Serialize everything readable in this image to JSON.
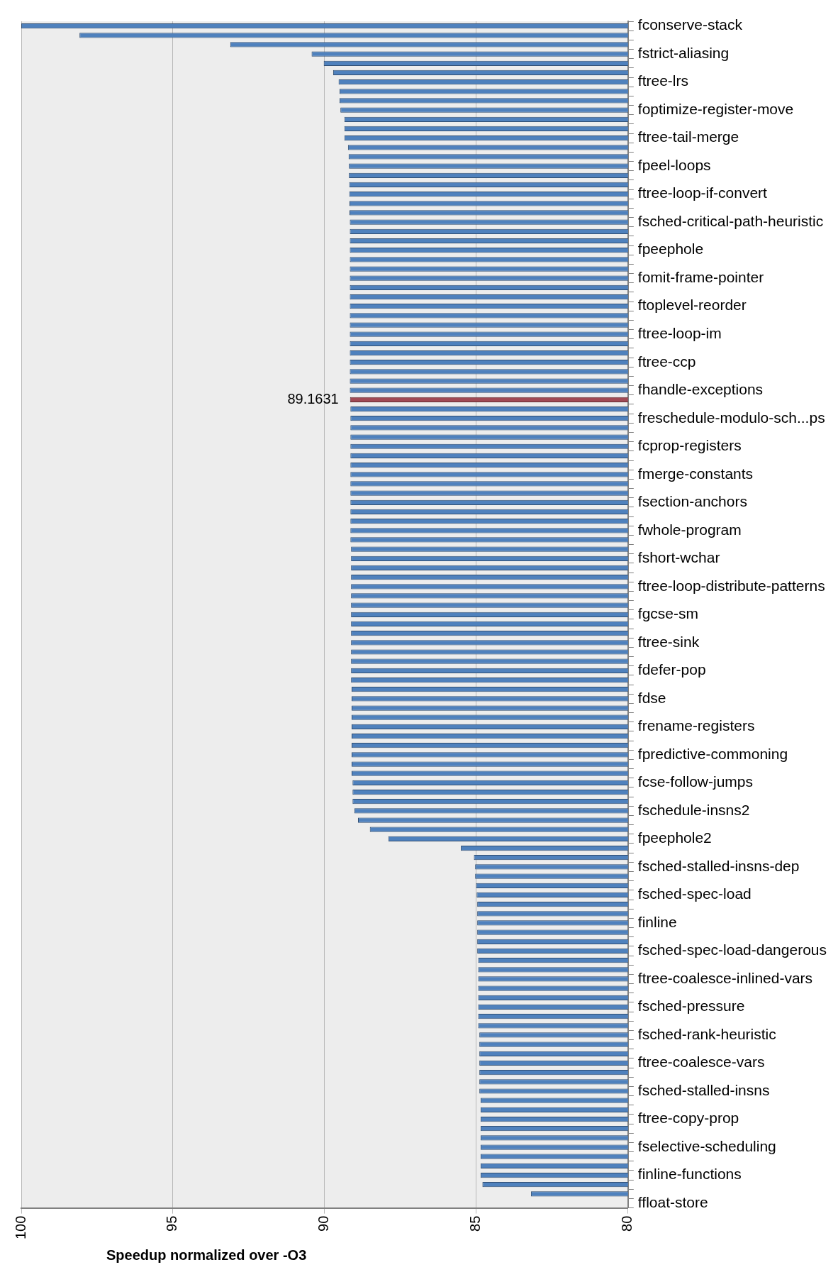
{
  "chart_data": {
    "type": "bar",
    "orientation": "horizontal",
    "xlabel": "Speedup normalized over -O3",
    "categories": [
      "fconserve-stack",
      null,
      null,
      "fstrict-aliasing",
      null,
      null,
      "ftree-lrs",
      null,
      null,
      "foptimize-register-move",
      null,
      null,
      "ftree-tail-merge",
      null,
      null,
      "fpeel-loops",
      null,
      null,
      "ftree-loop-if-convert",
      null,
      null,
      "fsched-critical-path-heuristic",
      null,
      null,
      "fpeephole",
      null,
      null,
      "fomit-frame-pointer",
      null,
      null,
      "ftoplevel-reorder",
      null,
      null,
      "ftree-loop-im",
      null,
      null,
      "ftree-ccp",
      null,
      null,
      "fhandle-exceptions",
      null,
      null,
      "freschedule-modulo-sch...ps",
      null,
      null,
      "fcprop-registers",
      null,
      null,
      "fmerge-constants",
      null,
      null,
      "fsection-anchors",
      null,
      null,
      "fwhole-program",
      null,
      null,
      "fshort-wchar",
      null,
      null,
      "ftree-loop-distribute-patterns",
      null,
      null,
      "fgcse-sm",
      null,
      null,
      "ftree-sink",
      null,
      null,
      "fdefer-pop",
      null,
      null,
      "fdse",
      null,
      null,
      "frename-registers",
      null,
      null,
      "fpredictive-commoning",
      null,
      null,
      "fcse-follow-jumps",
      null,
      null,
      "fschedule-insns2",
      null,
      null,
      "fpeephole2",
      null,
      null,
      "fsched-stalled-insns-dep",
      null,
      null,
      "fsched-spec-load",
      null,
      null,
      "finline",
      null,
      null,
      "fsched-spec-load-dangerous",
      null,
      null,
      "ftree-coalesce-inlined-vars",
      null,
      null,
      "fsched-pressure",
      null,
      null,
      "fsched-rank-heuristic",
      null,
      null,
      "ftree-coalesce-vars",
      null,
      null,
      "fsched-stalled-insns",
      null,
      null,
      "ftree-copy-prop",
      null,
      null,
      "fselective-scheduling",
      null,
      null,
      "finline-functions",
      null,
      null,
      "ffloat-store"
    ],
    "values": [
      100,
      98.08,
      93.11,
      90.43,
      90.03,
      89.72,
      89.54,
      89.51,
      89.51,
      89.48,
      89.35,
      89.35,
      89.35,
      89.23,
      89.21,
      89.2,
      89.2,
      89.19,
      89.19,
      89.18,
      89.18,
      89.17,
      89.17,
      89.17,
      89.17,
      89.17,
      89.17,
      89.17,
      89.17,
      89.17,
      89.17,
      89.17,
      89.17,
      89.17,
      89.17,
      89.17,
      89.17,
      89.17,
      89.17,
      89.17,
      89.1631,
      89.15,
      89.15,
      89.15,
      89.15,
      89.15,
      89.15,
      89.15,
      89.15,
      89.15,
      89.15,
      89.15,
      89.15,
      89.15,
      89.15,
      89.15,
      89.13,
      89.13,
      89.13,
      89.13,
      89.13,
      89.13,
      89.13,
      89.13,
      89.13,
      89.13,
      89.13,
      89.13,
      89.13,
      89.13,
      89.13,
      89.11,
      89.11,
      89.11,
      89.11,
      89.11,
      89.11,
      89.11,
      89.11,
      89.11,
      89.11,
      89.08,
      89.08,
      89.08,
      89.02,
      88.9,
      88.51,
      87.9,
      85.51,
      85.08,
      85.04,
      85.04,
      85.01,
      84.99,
      84.97,
      84.97,
      84.97,
      84.97,
      84.97,
      84.97,
      84.94,
      84.94,
      84.94,
      84.94,
      84.94,
      84.94,
      84.94,
      84.94,
      84.9,
      84.9,
      84.9,
      84.9,
      84.9,
      84.9,
      84.9,
      84.86,
      84.86,
      84.86,
      84.86,
      84.86,
      84.86,
      84.86,
      84.86,
      84.86,
      84.8,
      83.2,
      null
    ],
    "value_labels": [
      null,
      null,
      null,
      null,
      null,
      null,
      null,
      null,
      null,
      null,
      null,
      null,
      null,
      null,
      null,
      null,
      null,
      null,
      null,
      null,
      null,
      null,
      null,
      null,
      null,
      null,
      null,
      null,
      null,
      null,
      null,
      null,
      null,
      null,
      null,
      null,
      null,
      null,
      null,
      null,
      "89.1631",
      null,
      null,
      null,
      null,
      null,
      null,
      null,
      null,
      null,
      null,
      null,
      null,
      null,
      null,
      null,
      null,
      null,
      null,
      null,
      null,
      null,
      null,
      null,
      null,
      null,
      null,
      null,
      null,
      null,
      null,
      null,
      null,
      null,
      null,
      null,
      null,
      null,
      null,
      null,
      null,
      null,
      null,
      null,
      null,
      null,
      null,
      null,
      null,
      null,
      null,
      null,
      null,
      null,
      null,
      null,
      null,
      null,
      null,
      null,
      null,
      null,
      null,
      null,
      null,
      null,
      null,
      null,
      null,
      null,
      null,
      null,
      null,
      null,
      null,
      null,
      null,
      null,
      null,
      null,
      null,
      null,
      null,
      null,
      null,
      null,
      null
    ],
    "colors": [
      "#4f81bd",
      "#4f81bd",
      "#4f81bd",
      "#4f81bd",
      "#4f81bd",
      "#4f81bd",
      "#4f81bd",
      "#4f81bd",
      "#4f81bd",
      "#4f81bd",
      "#4f81bd",
      "#4f81bd",
      "#4f81bd",
      "#4f81bd",
      "#4f81bd",
      "#4f81bd",
      "#4f81bd",
      "#4f81bd",
      "#4f81bd",
      "#4f81bd",
      "#4f81bd",
      "#4f81bd",
      "#4f81bd",
      "#4f81bd",
      "#4f81bd",
      "#4f81bd",
      "#4f81bd",
      "#4f81bd",
      "#4f81bd",
      "#4f81bd",
      "#4f81bd",
      "#4f81bd",
      "#4f81bd",
      "#4f81bd",
      "#4f81bd",
      "#4f81bd",
      "#4f81bd",
      "#4f81bd",
      "#4f81bd",
      "#4f81bd",
      "#a04a55",
      "#4f81bd",
      "#4f81bd",
      "#4f81bd",
      "#4f81bd",
      "#4f81bd",
      "#4f81bd",
      "#4f81bd",
      "#4f81bd",
      "#4f81bd",
      "#4f81bd",
      "#4f81bd",
      "#4f81bd",
      "#4f81bd",
      "#4f81bd",
      "#4f81bd",
      "#4f81bd",
      "#4f81bd",
      "#4f81bd",
      "#4f81bd",
      "#4f81bd",
      "#4f81bd",
      "#4f81bd",
      "#4f81bd",
      "#4f81bd",
      "#4f81bd",
      "#4f81bd",
      "#4f81bd",
      "#4f81bd",
      "#4f81bd",
      "#4f81bd",
      "#4f81bd",
      "#4f81bd",
      "#4f81bd",
      "#4f81bd",
      "#4f81bd",
      "#4f81bd",
      "#4f81bd",
      "#4f81bd",
      "#4f81bd",
      "#4f81bd",
      "#4f81bd",
      "#4f81bd",
      "#4f81bd",
      "#4f81bd",
      "#4f81bd",
      "#4f81bd",
      "#4f81bd",
      "#4f81bd",
      "#4f81bd",
      "#4f81bd",
      "#4f81bd",
      "#4f81bd",
      "#4f81bd",
      "#4f81bd",
      "#4f81bd",
      "#4f81bd",
      "#4f81bd",
      "#4f81bd",
      "#4f81bd",
      "#4f81bd",
      "#4f81bd",
      "#4f81bd",
      "#4f81bd",
      "#4f81bd",
      "#4f81bd",
      "#4f81bd",
      "#4f81bd",
      "#4f81bd",
      "#4f81bd",
      "#4f81bd",
      "#4f81bd",
      "#4f81bd",
      "#4f81bd",
      "#4f81bd",
      "#4f81bd",
      "#4f81bd",
      "#4f81bd",
      "#4f81bd",
      "#4f81bd",
      "#4f81bd",
      "#4f81bd",
      "#4f81bd",
      "#4f81bd",
      "#4f81bd",
      "#4f81bd",
      "#4f81bd"
    ],
    "xlim": [
      100,
      80
    ],
    "xticks": [
      100,
      95,
      90,
      85,
      80
    ],
    "grid": "x",
    "legend": false
  }
}
